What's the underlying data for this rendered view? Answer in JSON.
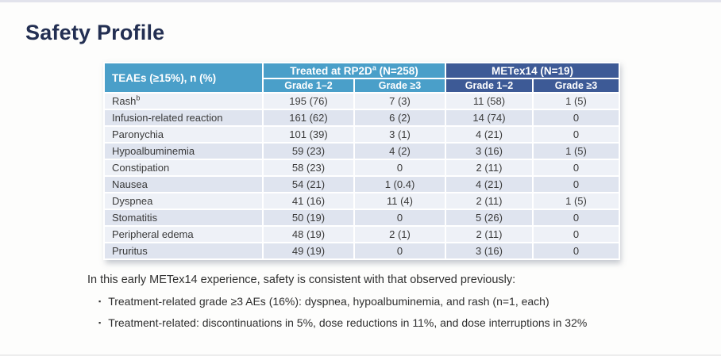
{
  "page": {
    "title": "Safety Profile"
  },
  "table": {
    "corner_header": "TEAEs (≥15%), n (%)",
    "groups": [
      {
        "label": "Treated at RP2D",
        "sup": "a",
        "suffix": " (N=258)"
      },
      {
        "label": "METex14 (N=19)",
        "sup": "",
        "suffix": ""
      }
    ],
    "subheaders": [
      "Grade 1–2",
      "Grade ≥3",
      "Grade 1–2",
      "Grade ≥3"
    ],
    "rows": [
      {
        "label": "Rash",
        "sup": "b",
        "values": [
          "195 (76)",
          "7 (3)",
          "11 (58)",
          "1 (5)"
        ]
      },
      {
        "label": "Infusion-related reaction",
        "sup": "",
        "values": [
          "161 (62)",
          "6 (2)",
          "14 (74)",
          "0"
        ]
      },
      {
        "label": "Paronychia",
        "sup": "",
        "values": [
          "101 (39)",
          "3 (1)",
          "4 (21)",
          "0"
        ]
      },
      {
        "label": "Hypoalbuminemia",
        "sup": "",
        "values": [
          "59 (23)",
          "4 (2)",
          "3 (16)",
          "1 (5)"
        ]
      },
      {
        "label": "Constipation",
        "sup": "",
        "values": [
          "58 (23)",
          "0",
          "2 (11)",
          "0"
        ]
      },
      {
        "label": "Nausea",
        "sup": "",
        "values": [
          "54 (21)",
          "1 (0.4)",
          "4 (21)",
          "0"
        ]
      },
      {
        "label": "Dyspnea",
        "sup": "",
        "values": [
          "41 (16)",
          "11 (4)",
          "2 (11)",
          "1 (5)"
        ]
      },
      {
        "label": "Stomatitis",
        "sup": "",
        "values": [
          "50 (19)",
          "0",
          "5 (26)",
          "0"
        ]
      },
      {
        "label": "Peripheral edema",
        "sup": "",
        "values": [
          "48 (19)",
          "2 (1)",
          "2 (11)",
          "0"
        ]
      },
      {
        "label": "Pruritus",
        "sup": "",
        "values": [
          "49 (19)",
          "0",
          "3 (16)",
          "0"
        ]
      }
    ]
  },
  "summary": {
    "intro": "In this early METex14 experience, safety is consistent with that observed previously:",
    "bullet_glyph": "▪",
    "bullets": [
      "Treatment-related grade ≥3 AEs (16%): dyspnea, hypoalbuminemia, and rash (n=1, each)",
      "Treatment-related: discontinuations in 5%, dose reductions in 11%, and dose interruptions in 32%"
    ]
  },
  "colors": {
    "header_blue": "#4a9fc9",
    "header_navy": "#3d5a96",
    "title_navy": "#232f52",
    "row_light": "#eef1f7",
    "row_dark": "#dfe4ef"
  }
}
